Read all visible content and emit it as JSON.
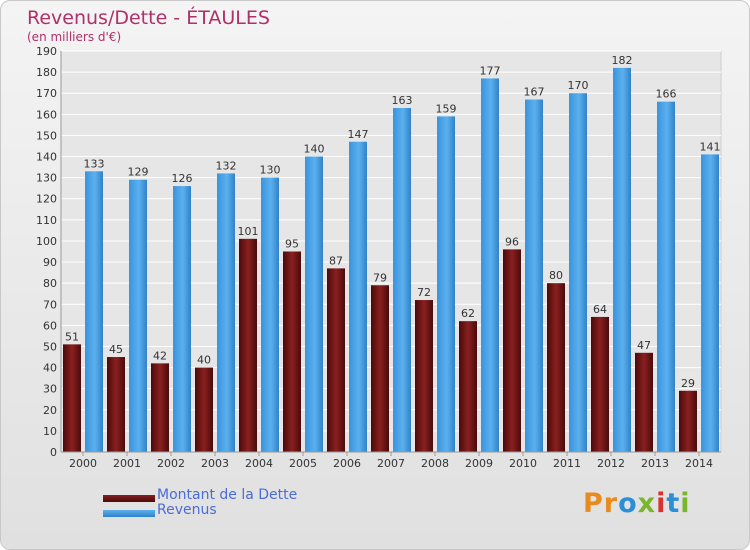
{
  "title": "Revenus/Dette - ÉTAULES",
  "subtitle": "(en milliers d'€)",
  "logo": "Proxiti",
  "colors": {
    "dette": "#6e1414",
    "revenus": "#3f9ae0",
    "grid": "#ffffff",
    "text": "#333333"
  },
  "legend": [
    {
      "label": "Montant de la Dette",
      "color": "#6e1414"
    },
    {
      "label": "Revenus",
      "color": "#3f9ae0"
    }
  ],
  "chart_data": {
    "type": "bar",
    "title": "Revenus/Dette - ÉTAULES",
    "subtitle": "(en milliers d'€)",
    "categories": [
      "2000",
      "2001",
      "2002",
      "2003",
      "2004",
      "2005",
      "2006",
      "2007",
      "2008",
      "2009",
      "2010",
      "2011",
      "2012",
      "2013",
      "2014"
    ],
    "series": [
      {
        "name": "Montant de la Dette",
        "color": "#6e1414",
        "values": [
          51,
          45,
          42,
          40,
          101,
          95,
          87,
          79,
          72,
          62,
          96,
          80,
          64,
          47,
          29
        ]
      },
      {
        "name": "Revenus",
        "color": "#3f9ae0",
        "values": [
          133,
          129,
          126,
          132,
          130,
          140,
          147,
          163,
          159,
          177,
          167,
          170,
          182,
          166,
          141
        ]
      }
    ],
    "ylim": [
      0,
      190
    ],
    "yticks": [
      0,
      10,
      20,
      30,
      40,
      50,
      60,
      70,
      80,
      90,
      100,
      110,
      120,
      130,
      140,
      150,
      160,
      170,
      180,
      190
    ],
    "grid": true,
    "legend_position": "bottom-left"
  }
}
